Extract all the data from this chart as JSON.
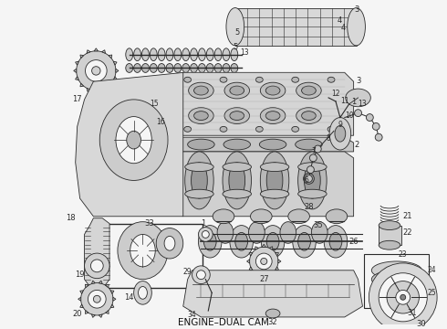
{
  "footer_text": "ENGINE–DUAL CAM",
  "background_color": "#f5f5f5",
  "fig_width": 4.9,
  "fig_height": 3.6,
  "dpi": 100,
  "lc": "#2a2a2a",
  "lw": 0.6
}
